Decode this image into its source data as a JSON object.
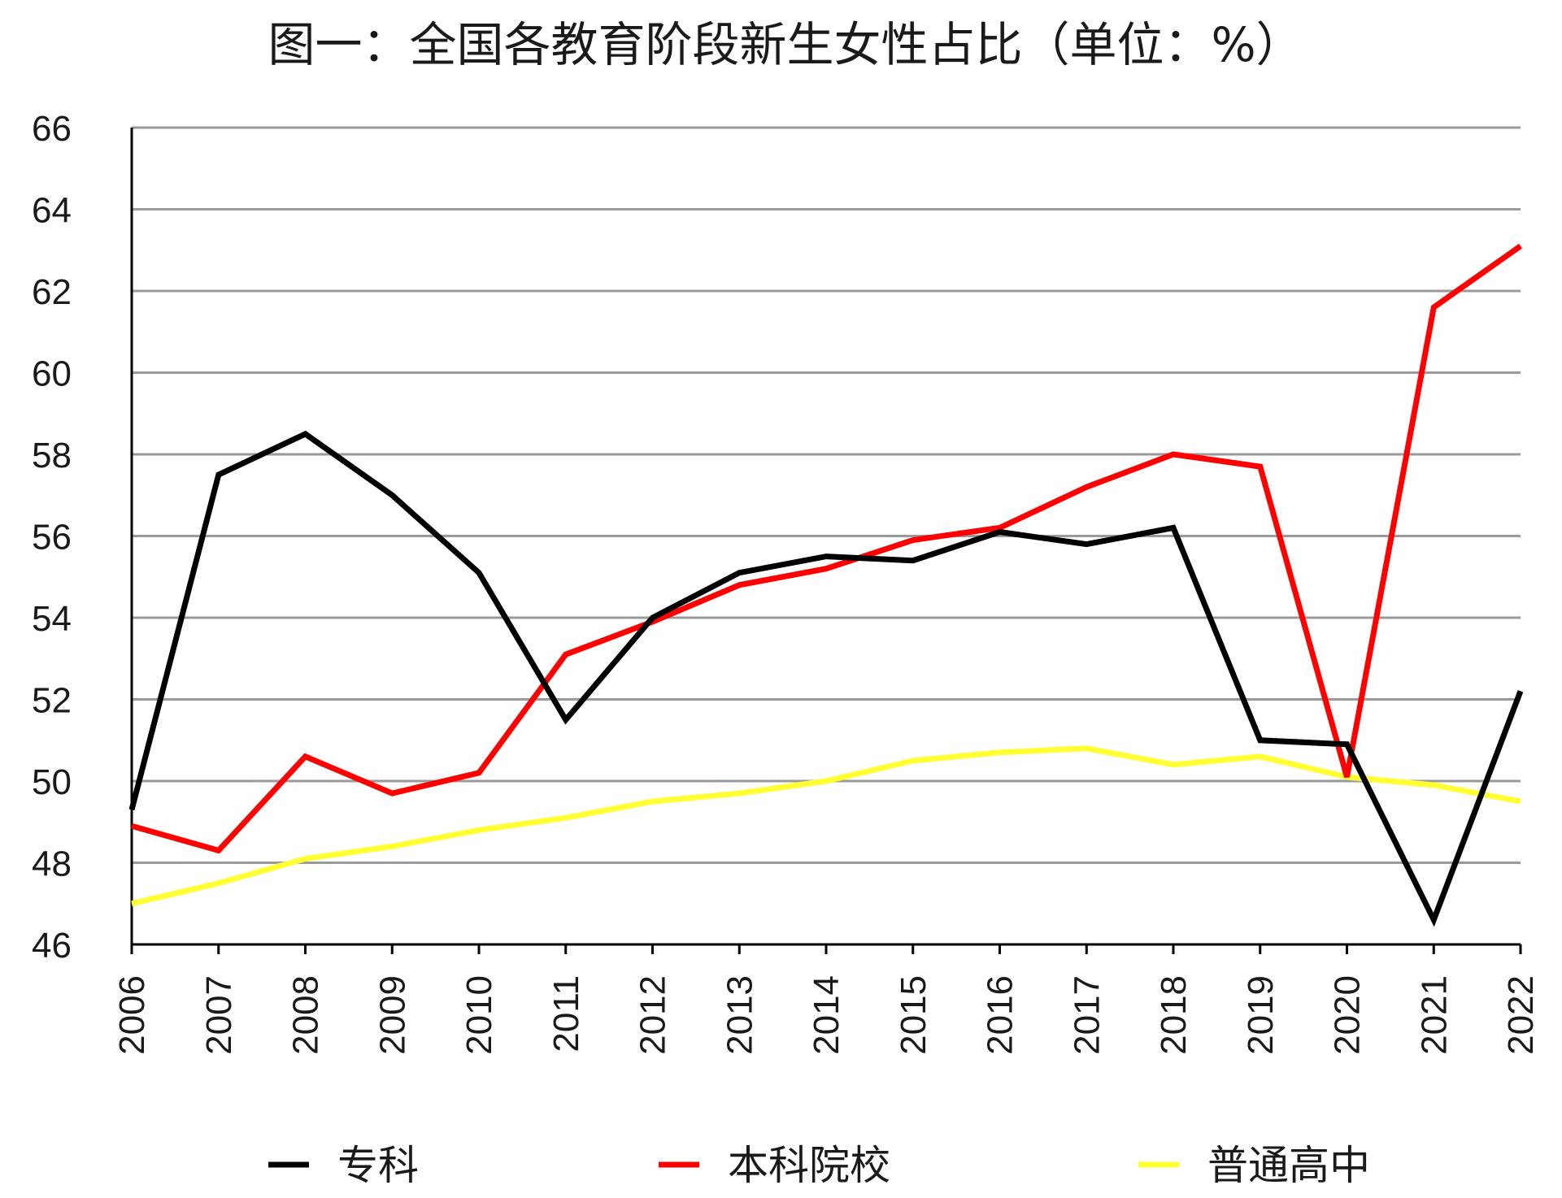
{
  "chart_data": {
    "type": "line",
    "title": "图一：全国各教育阶段新生女性占比（单位：%）",
    "xlabel": "",
    "ylabel": "",
    "x": [
      "2006",
      "2007",
      "2008",
      "2009",
      "2010",
      "2011",
      "2012",
      "2013",
      "2014",
      "2015",
      "2016",
      "2017",
      "2018",
      "2019",
      "2020",
      "2021",
      "2022"
    ],
    "ylim": [
      46,
      66
    ],
    "yticks": [
      66,
      64,
      62,
      60,
      58,
      56,
      54,
      52,
      50,
      48,
      46
    ],
    "grid": true,
    "legend_position": "bottom",
    "series": [
      {
        "name": "专科",
        "color": "#000000",
        "values": [
          49.3,
          57.5,
          58.5,
          57.0,
          55.1,
          51.5,
          54.0,
          55.1,
          55.5,
          55.4,
          56.1,
          55.8,
          56.2,
          51.0,
          50.9,
          46.6,
          52.2
        ]
      },
      {
        "name": "本科院校",
        "color": "#ff0000",
        "values": [
          48.9,
          48.3,
          50.6,
          49.7,
          50.2,
          53.1,
          53.9,
          54.8,
          55.2,
          55.9,
          56.2,
          57.2,
          58.0,
          57.7,
          50.1,
          61.6,
          63.1
        ]
      },
      {
        "name": "普通高中",
        "color": "#ffff33",
        "values": [
          47.0,
          47.5,
          48.1,
          48.4,
          48.8,
          49.1,
          49.5,
          49.7,
          50.0,
          50.5,
          50.7,
          50.8,
          50.4,
          50.6,
          50.1,
          49.9,
          49.5
        ]
      }
    ]
  }
}
